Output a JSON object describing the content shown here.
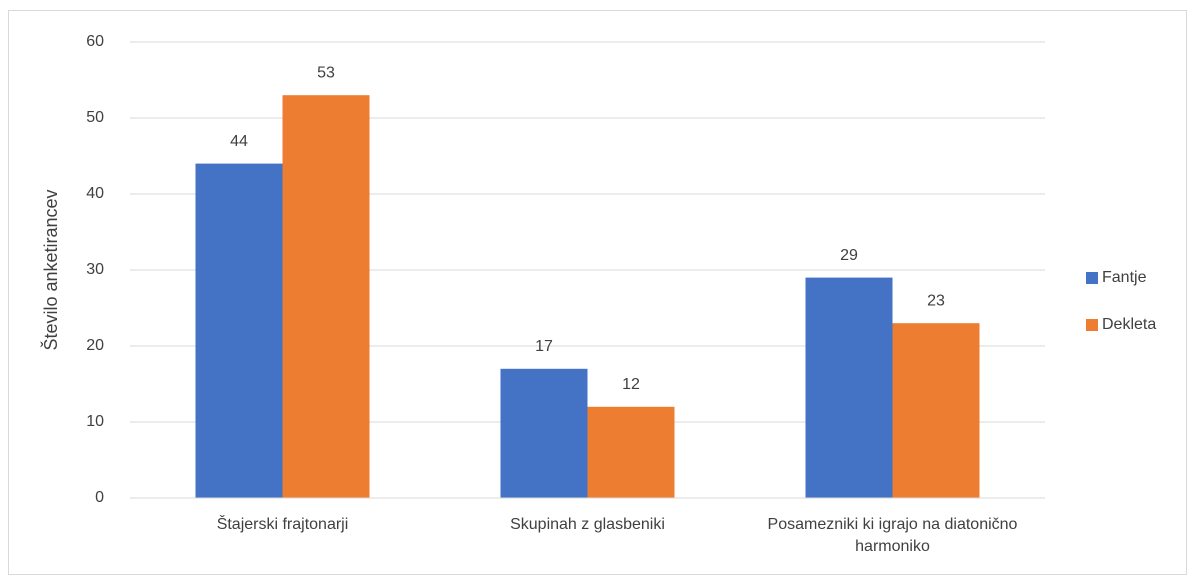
{
  "chart_data": {
    "type": "bar",
    "categories": [
      "Štajerski frajtonarji",
      "Skupinah z glasbeniki",
      "Posamezniki ki igrajo na diatonično harmoniko"
    ],
    "series": [
      {
        "name": "Fantje",
        "color": "#4472c4",
        "values": [
          44,
          17,
          29
        ]
      },
      {
        "name": "Dekleta",
        "color": "#ed7d31",
        "values": [
          53,
          12,
          23
        ]
      }
    ],
    "y_label": "Število anketirancev",
    "ylim": [
      0,
      60
    ],
    "yticks": [
      0,
      10,
      20,
      30,
      40,
      50,
      60
    ],
    "grid": true,
    "legend": "right"
  }
}
